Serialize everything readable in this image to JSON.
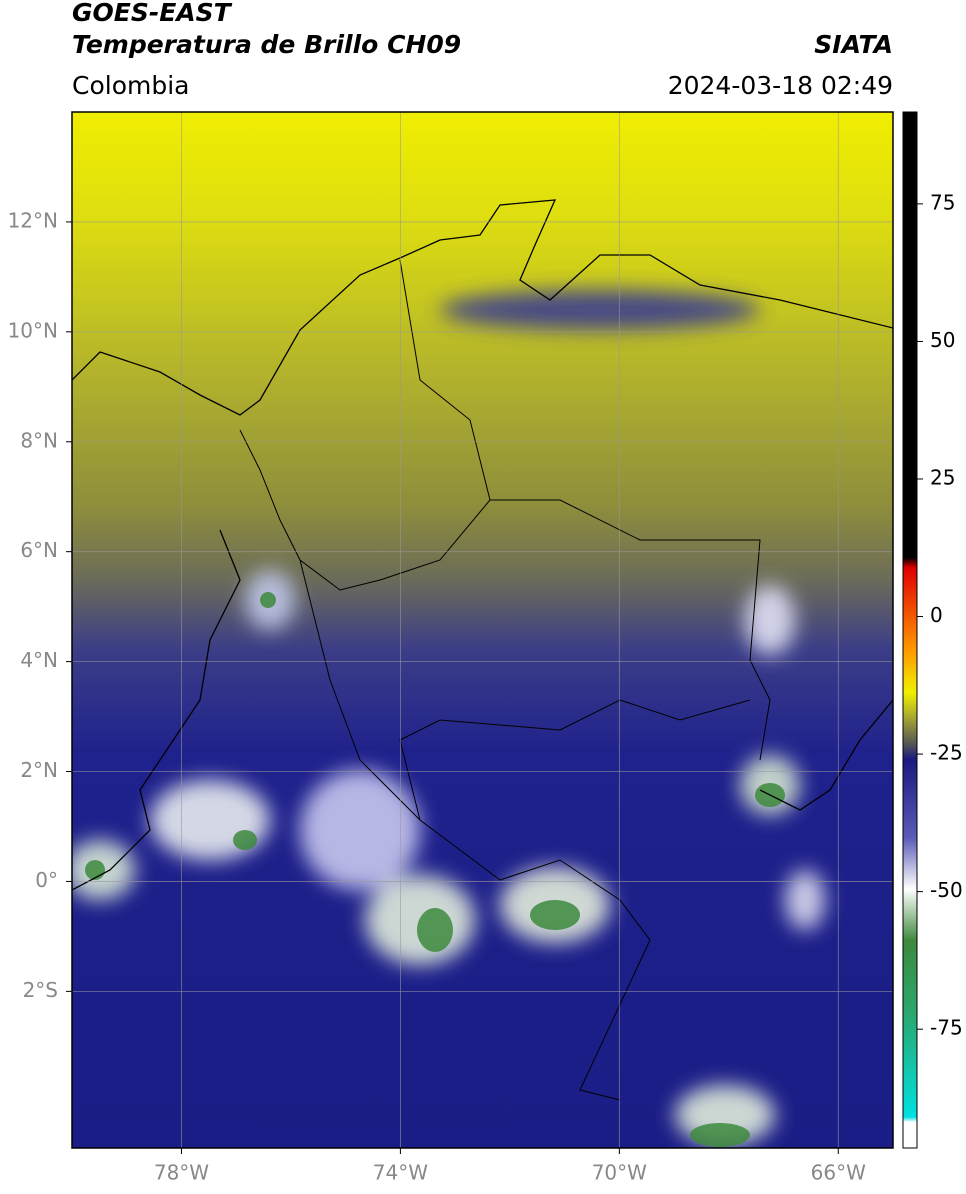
{
  "header": {
    "source": "GOES-EAST",
    "title": "Temperatura de Brillo CH09",
    "agency": "SIATA",
    "region": "Colombia",
    "datetime": "2024-03-18 02:49"
  },
  "map": {
    "lon_range": [
      -80,
      -65
    ],
    "lat_range": [
      -4.85,
      14
    ],
    "lon_ticks": [
      {
        "value": -78,
        "label": "78°W"
      },
      {
        "value": -74,
        "label": "74°W"
      },
      {
        "value": -70,
        "label": "70°W"
      },
      {
        "value": -66,
        "label": "66°W"
      }
    ],
    "lat_ticks": [
      {
        "value": 12,
        "label": "12°N"
      },
      {
        "value": 10,
        "label": "10°N"
      },
      {
        "value": 8,
        "label": "8°N"
      },
      {
        "value": 6,
        "label": "6°N"
      },
      {
        "value": 4,
        "label": "4°N"
      },
      {
        "value": 2,
        "label": "2°N"
      },
      {
        "value": 0,
        "label": "0°"
      },
      {
        "value": -2,
        "label": "2°S"
      }
    ]
  },
  "colorbar": {
    "range": [
      -96.6,
      91.7
    ],
    "ticks": [
      75,
      50,
      25,
      0,
      -25,
      -50,
      -75
    ]
  }
}
